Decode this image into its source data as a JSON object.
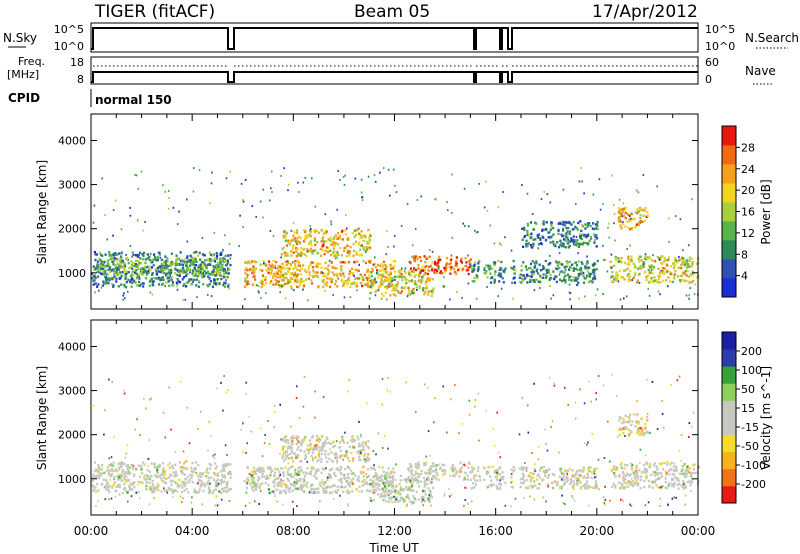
{
  "header": {
    "left": "TIGER (fitACF)",
    "center": "Beam 05",
    "right": "17/Apr/2012"
  },
  "strip_nsky": {
    "label": "N.Sky",
    "ticks_left": [
      "10^5",
      "10^0"
    ],
    "ticks_right": [
      "10^5",
      "10^0"
    ],
    "right_label": "N.Search"
  },
  "strip_freq": {
    "label_line1": "Freq.",
    "label_line2": "[MHz]",
    "ticks_left": [
      "18",
      "8"
    ],
    "ticks_right": [
      "60",
      "0"
    ],
    "right_label": "Nave"
  },
  "strip_cpid": {
    "label": "CPID",
    "mode": "normal 150"
  },
  "x_axis": {
    "label": "Time UT",
    "ticks": [
      "00:00",
      "04:00",
      "08:00",
      "12:00",
      "16:00",
      "20:00",
      "00:00"
    ]
  },
  "colors": {
    "power": [
      "#1a2fd6",
      "#2d52b3",
      "#2f8a5a",
      "#56b44a",
      "#a8cf3e",
      "#f2d41c",
      "#f5a21a",
      "#f06a14",
      "#e8180f"
    ],
    "velocity": [
      "#e81a12",
      "#f27318",
      "#f7b21e",
      "#f3dc2a",
      "#c8c8c2",
      "#c8c8c2",
      "#8cd05a",
      "#35a33a",
      "#2b3da8",
      "#1b1fa3"
    ]
  },
  "chart_data": [
    {
      "type": "heatmap",
      "variable": "Power",
      "xlabel": "",
      "ylabel": "Slant Range [km]",
      "xlim_hours": [
        0,
        24
      ],
      "ylim_km": [
        180,
        4600
      ],
      "yticks": [
        "1000",
        "2000",
        "3000",
        "4000"
      ],
      "colorbar": {
        "label": "Power [dB]",
        "ticks": [
          "4",
          "8",
          "12",
          "16",
          "20",
          "24",
          "28"
        ],
        "range": [
          0,
          32
        ]
      },
      "data_gaps_hours": [
        [
          5.55,
          5.8
        ],
        [
          15.35,
          15.5
        ],
        [
          16.35,
          16.55
        ],
        [
          16.75,
          16.9
        ]
      ],
      "echo_regions": [
        {
          "t": [
            0.0,
            5.5
          ],
          "range_km": [
            700,
            1500
          ],
          "value_db": 8
        },
        {
          "t": [
            0.2,
            5.3
          ],
          "range_km": [
            950,
            1350
          ],
          "value_db": 14
        },
        {
          "t": [
            6.0,
            12.0
          ],
          "range_km": [
            700,
            1300
          ],
          "value_db": 22
        },
        {
          "t": [
            7.5,
            11.0
          ],
          "range_km": [
            1400,
            2000
          ],
          "value_db": 20
        },
        {
          "t": [
            11.0,
            13.5
          ],
          "range_km": [
            500,
            1100
          ],
          "value_db": 18
        },
        {
          "t": [
            12.5,
            15.0
          ],
          "range_km": [
            1000,
            1400
          ],
          "value_db": 27
        },
        {
          "t": [
            15.0,
            20.0
          ],
          "range_km": [
            800,
            1300
          ],
          "value_db": 10
        },
        {
          "t": [
            17.0,
            20.0
          ],
          "range_km": [
            1600,
            2200
          ],
          "value_db": 8
        },
        {
          "t": [
            20.5,
            24.0
          ],
          "range_km": [
            800,
            1400
          ],
          "value_db": 18
        },
        {
          "t": [
            20.8,
            22.0
          ],
          "range_km": [
            2000,
            2500
          ],
          "value_db": 22
        }
      ]
    },
    {
      "type": "heatmap",
      "variable": "Velocity",
      "xlabel": "Time UT",
      "ylabel": "Slant Range [km]",
      "xlim_hours": [
        0,
        24
      ],
      "ylim_km": [
        180,
        4600
      ],
      "yticks": [
        "1000",
        "2000",
        "3000",
        "4000"
      ],
      "colorbar": {
        "label": "Velocity [m s^-1]",
        "ticks": [
          "-200",
          "-100",
          "-50",
          "-15",
          "15",
          "50",
          "100",
          "200"
        ],
        "range": [
          -250,
          250
        ]
      },
      "data_gaps_hours": [
        [
          5.55,
          5.8
        ],
        [
          15.35,
          15.5
        ],
        [
          16.35,
          16.55
        ],
        [
          16.75,
          16.9
        ]
      ],
      "echo_regions": [
        {
          "t": [
            0.0,
            5.5
          ],
          "range_km": [
            700,
            1400
          ],
          "value_ms": 0
        },
        {
          "t": [
            6.0,
            12.0
          ],
          "range_km": [
            700,
            1300
          ],
          "value_ms": 0
        },
        {
          "t": [
            7.5,
            11.0
          ],
          "range_km": [
            1400,
            2000
          ],
          "value_ms": -40
        },
        {
          "t": [
            11.0,
            13.5
          ],
          "range_km": [
            500,
            1100
          ],
          "value_ms": 60
        },
        {
          "t": [
            12.5,
            15.0
          ],
          "range_km": [
            1000,
            1400
          ],
          "value_ms": 0
        },
        {
          "t": [
            15.0,
            20.0
          ],
          "range_km": [
            800,
            1300
          ],
          "value_ms": -20
        },
        {
          "t": [
            20.5,
            24.0
          ],
          "range_km": [
            800,
            1400
          ],
          "value_ms": 0
        },
        {
          "t": [
            20.8,
            22.0
          ],
          "range_km": [
            2000,
            2500
          ],
          "value_ms": -80
        }
      ]
    }
  ]
}
